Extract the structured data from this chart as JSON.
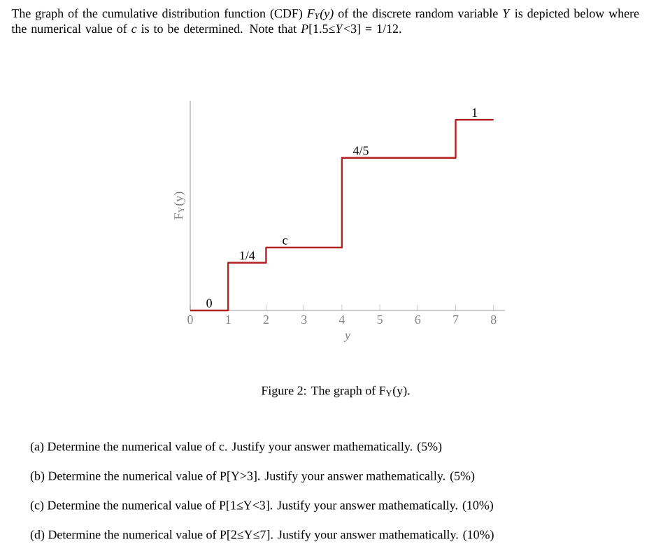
{
  "chart_data": {
    "type": "step",
    "title": "The graph of the cumulative distribution function (CDF) *F$_{Y}$(y)* of the discrete random variable *Y* is depicted below where the numerical value of *c* is to be determined. Note that *P*[1.5≤*Y*<3] = 1/12.",
    "xlabel": "y",
    "ylabel": "F$_{Y}$(y)",
    "x": [
      0,
      1,
      2,
      4,
      7,
      8
    ],
    "values": [
      0,
      0.25,
      0.33,
      0.8,
      1,
      1
    ],
    "value_labels": [
      "0",
      "1/4",
      "c",
      "4/5",
      "1",
      null
    ],
    "color": "#b22222",
    "tick_labels": "x",
    "xlim": [
      0,
      8.3
    ],
    "xticks": [
      0,
      1,
      2,
      3,
      4,
      5,
      6,
      7,
      8
    ],
    "annotations": [
      "Figure 2: The graph of F$_{Y}$(y).",
      "(a) Determine the numerical value of c. Justify your answer mathematically. (5%)",
      "(b) Determine the numerical value of P[Y>3]. Justify your answer mathematically. (5%)",
      "(c) Determine the numerical value of P[1≤Y<3]. Justify your answer mathematically. (10%)",
      "(d) Determine the numerical value of P[2≤Y≤7]. Justify your answer mathematically. (10%)"
    ]
  }
}
